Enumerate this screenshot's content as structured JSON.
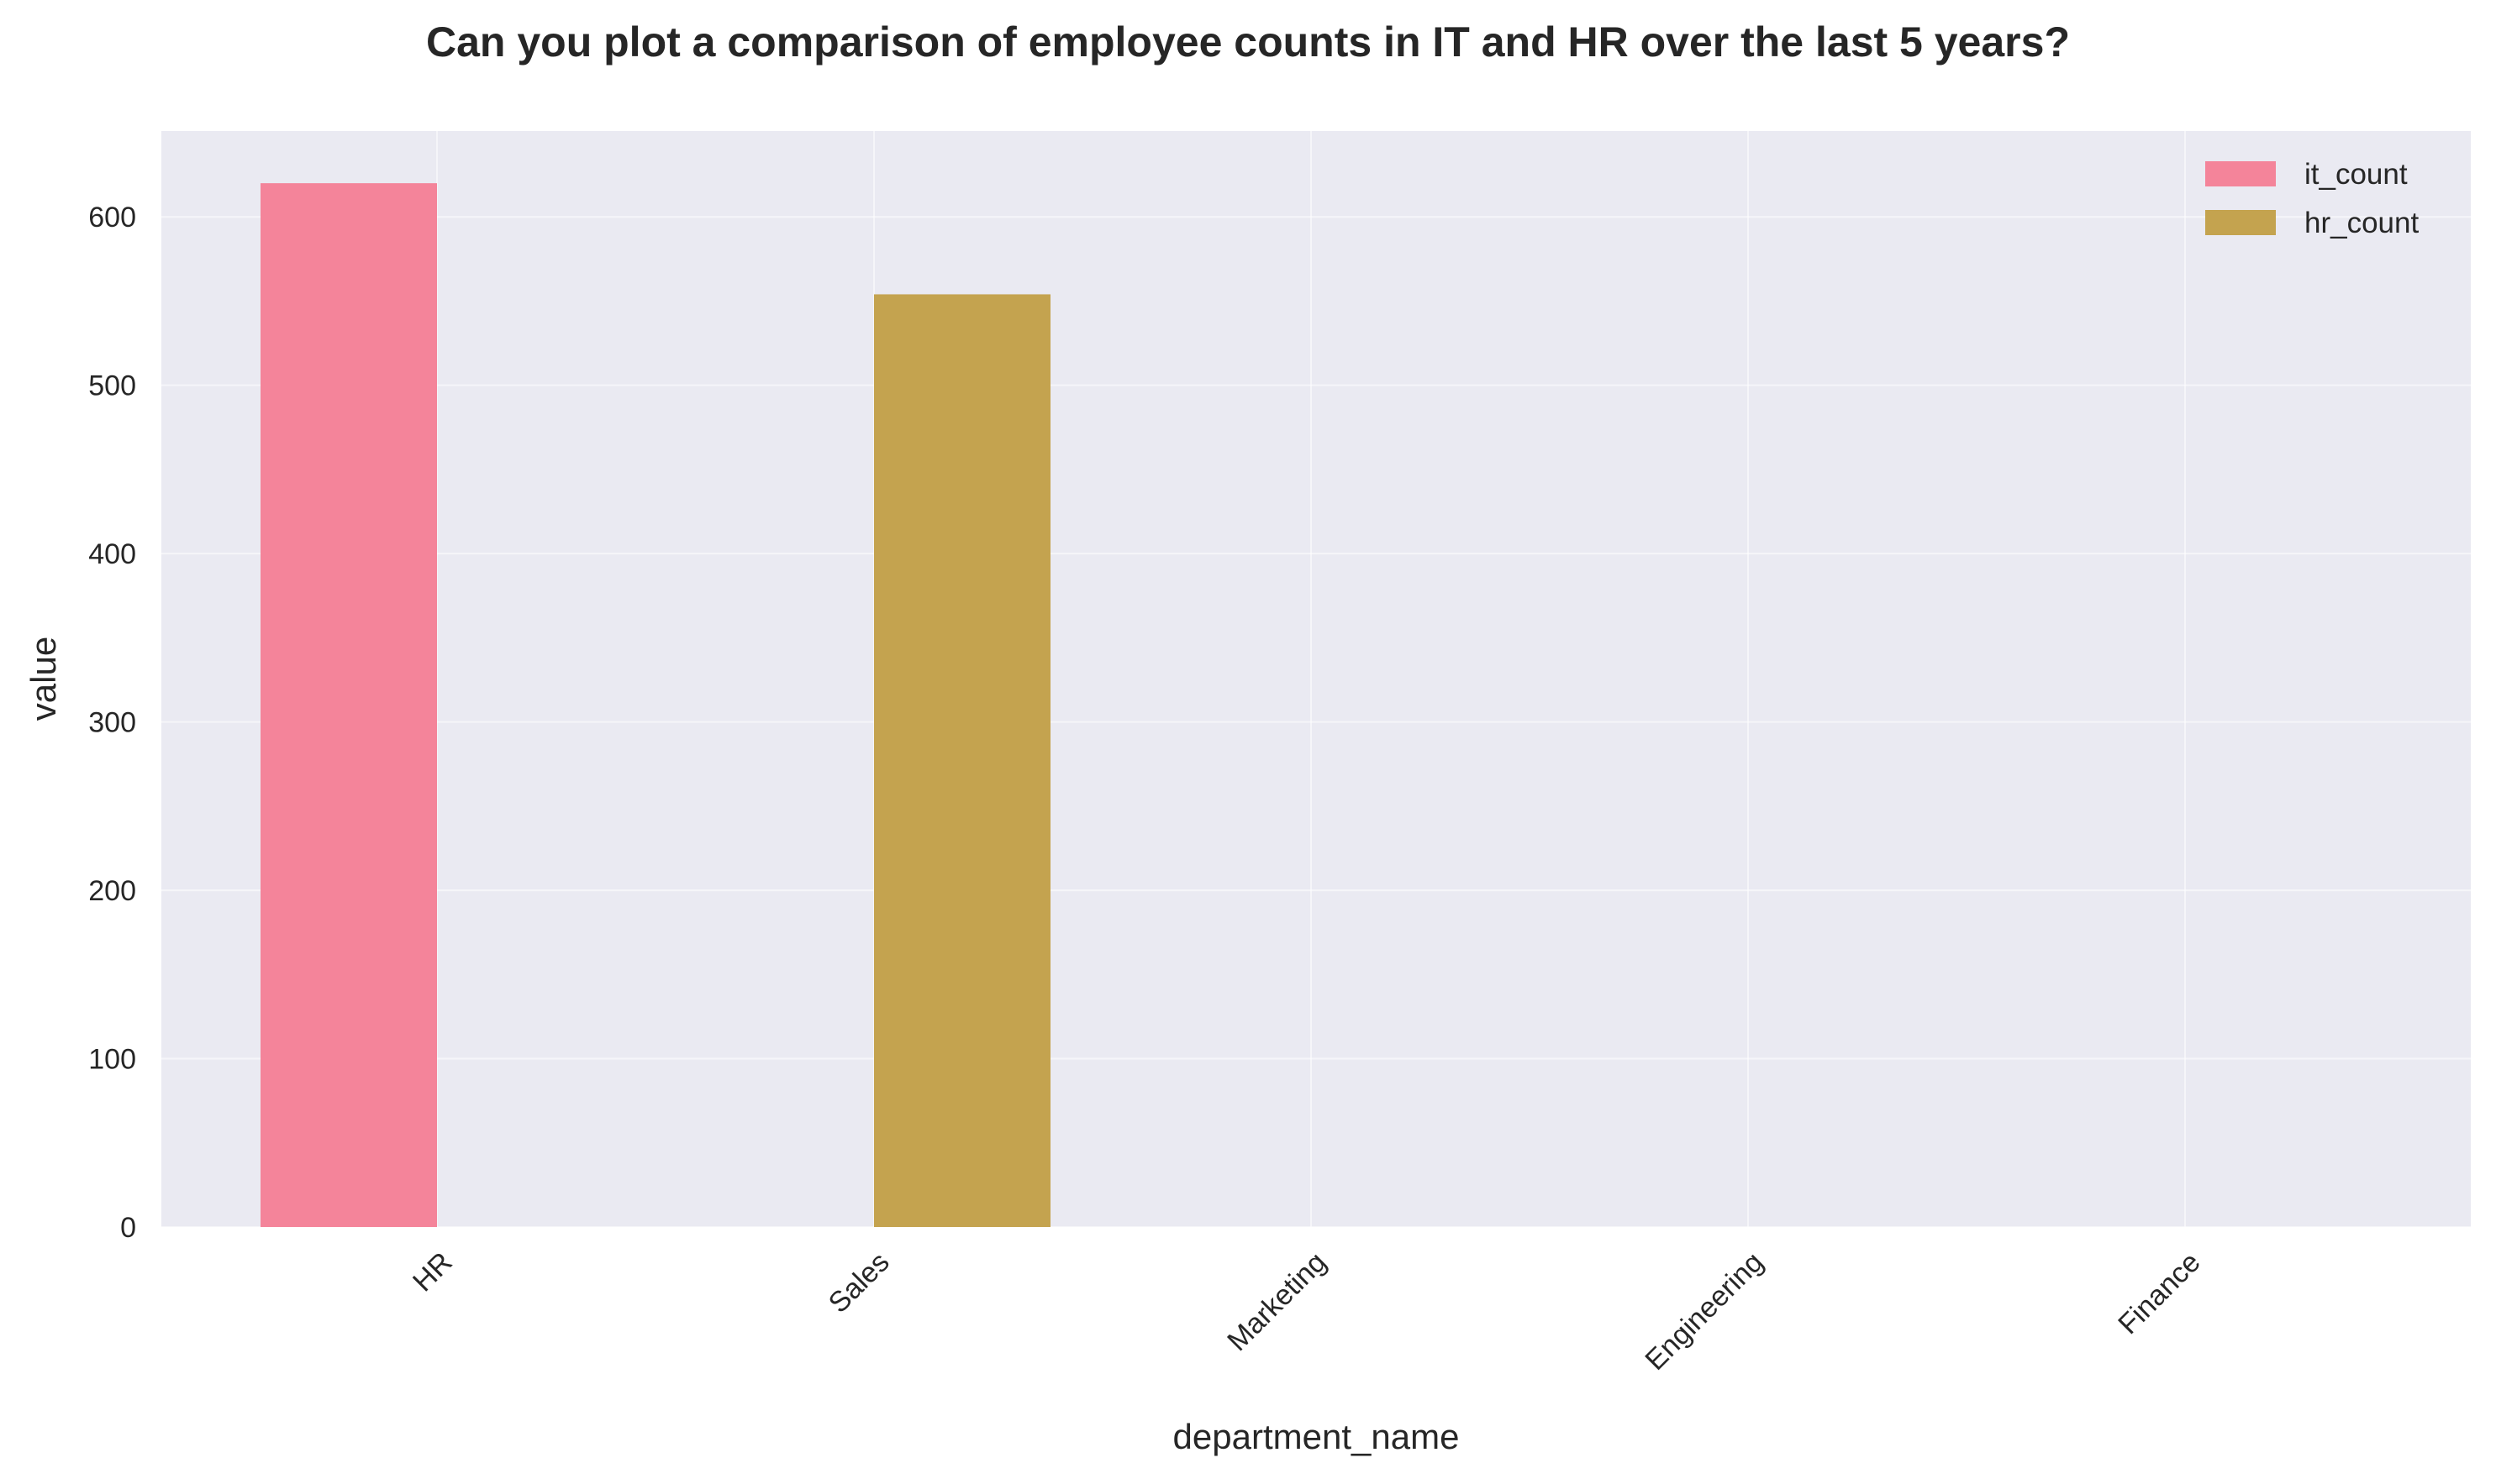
{
  "chart_data": {
    "type": "bar",
    "title": "Can you plot a comparison of employee counts in IT and HR over the last 5 years?",
    "xlabel": "department_name",
    "ylabel": "value",
    "categories": [
      "HR",
      "Sales",
      "Marketing",
      "Engineering",
      "Finance"
    ],
    "series": [
      {
        "name": "it_count",
        "values": [
          620,
          0,
          0,
          0,
          0
        ],
        "color": "#f4849a"
      },
      {
        "name": "hr_count",
        "values": [
          0,
          554,
          0,
          0,
          0
        ],
        "color": "#c4a34f"
      }
    ],
    "ylim": [
      0,
      651
    ],
    "yticks": [
      0,
      100,
      200,
      300,
      400,
      500,
      600
    ],
    "grid": true,
    "legend_position": "top-right",
    "background_color": "#eaeaf2"
  }
}
